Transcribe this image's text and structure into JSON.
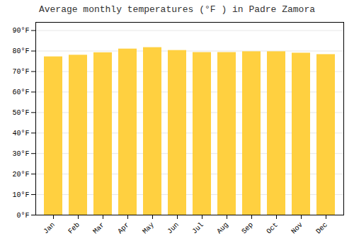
{
  "chart_data": {
    "type": "bar",
    "title": "Average monthly temperatures (°F ) in Padre Zamora",
    "categories": [
      "Jan",
      "Feb",
      "Mar",
      "Apr",
      "May",
      "Jun",
      "Jul",
      "Aug",
      "Sep",
      "Oct",
      "Nov",
      "Dec"
    ],
    "values": [
      77.2,
      78.0,
      79.2,
      81.0,
      81.7,
      80.3,
      79.3,
      79.3,
      79.7,
      79.7,
      79.0,
      78.3
    ],
    "color": "#FFD040",
    "ylim": [
      0,
      94
    ],
    "yticks": [
      {
        "value": 0,
        "label": "0°F"
      },
      {
        "value": 10,
        "label": "10°F"
      },
      {
        "value": 20,
        "label": "20°F"
      },
      {
        "value": 30,
        "label": "30°F"
      },
      {
        "value": 40,
        "label": "40°F"
      },
      {
        "value": 50,
        "label": "50°F"
      },
      {
        "value": 60,
        "label": "60°F"
      },
      {
        "value": 70,
        "label": "70°F"
      },
      {
        "value": 80,
        "label": "80°F"
      },
      {
        "value": 90,
        "label": "90°F"
      }
    ],
    "grid": true
  }
}
